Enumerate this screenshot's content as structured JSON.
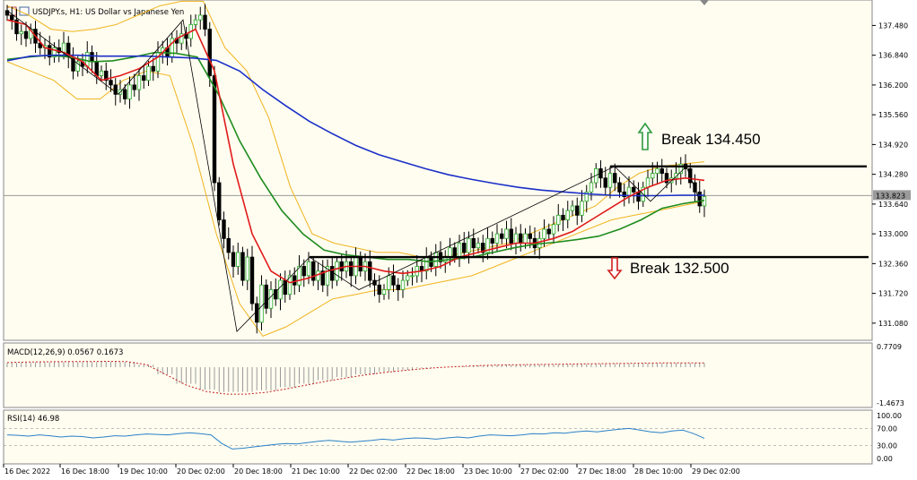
{
  "header": {
    "title": "USDJPY.s, H1:  US Dollar vs Japanese Yen",
    "icons": [
      "pane-icon",
      "chart-icon"
    ]
  },
  "colors": {
    "background": "#fffdf0",
    "candle_up": "#22aa22",
    "candle_down": "#000000",
    "ma_blue": "#1a2fc8",
    "ma_red": "#e11a1a",
    "ma_green": "#1f8c1f",
    "bollinger": "#f0b41e",
    "level_line": "#000000",
    "arrow_up": "#2e9b3e",
    "arrow_down": "#d02020",
    "macd": "#c02020",
    "rsi": "#2a80c8"
  },
  "chart_data": {
    "type": "candlestick",
    "symbol": "USDJPY.s",
    "timeframe": "H1",
    "ylim": [
      130.75,
      137.95
    ],
    "x_tick_labels": [
      "16 Dec 2022",
      "16 Dec 18:00",
      "19 Dec 10:00",
      "20 Dec 02:00",
      "20 Dec 18:00",
      "21 Dec 10:00",
      "22 Dec 02:00",
      "22 Dec 18:00",
      "23 Dec 10:00",
      "27 Dec 02:00",
      "27 Dec 18:00",
      "28 Dec 10:00",
      "29 Dec 02:00"
    ],
    "y_tick_labels": [
      "137.480",
      "136.840",
      "136.200",
      "135.560",
      "134.920",
      "134.280",
      "133.640",
      "133.000",
      "132.360",
      "131.720",
      "131.080"
    ],
    "y_ticks": [
      137.48,
      136.84,
      136.2,
      135.56,
      134.92,
      134.28,
      133.64,
      133.0,
      132.36,
      131.72,
      131.08
    ],
    "current_price": 133.823,
    "current_price_label": "133.823",
    "levels": [
      {
        "value": 134.45,
        "label": "Break 134.450",
        "direction": "up"
      },
      {
        "value": 132.5,
        "label": "Break 132.500",
        "direction": "down"
      }
    ],
    "closes": [
      137.7,
      137.6,
      137.3,
      137.35,
      137.2,
      137.4,
      137.1,
      137.0,
      137.05,
      136.8,
      137.0,
      136.9,
      137.1,
      136.8,
      136.5,
      136.7,
      136.6,
      136.9,
      136.7,
      136.4,
      136.5,
      136.3,
      136.2,
      136.0,
      136.1,
      135.9,
      136.2,
      136.1,
      136.4,
      136.3,
      136.6,
      136.5,
      136.9,
      137.0,
      136.8,
      137.2,
      137.1,
      137.3,
      137.2,
      137.5,
      137.6,
      137.7,
      137.4,
      136.4,
      134.1,
      133.3,
      132.9,
      132.6,
      132.3,
      132.6,
      132.0,
      132.5,
      131.5,
      131.1,
      131.9,
      131.4,
      131.8,
      131.6,
      132.0,
      131.7,
      132.1,
      131.9,
      132.3,
      132.1,
      132.4,
      132.0,
      132.2,
      131.9,
      132.3,
      132.0,
      132.4,
      132.2,
      132.4,
      132.1,
      132.5,
      132.2,
      132.4,
      132.0,
      131.9,
      131.7,
      131.8,
      132.1,
      131.9,
      131.8,
      132.0,
      132.1,
      132.1,
      132.3,
      132.2,
      132.5,
      132.3,
      132.6,
      132.4,
      132.5,
      132.7,
      132.5,
      132.8,
      132.6,
      132.9,
      132.7,
      132.8,
      132.6,
      132.9,
      132.8,
      133.0,
      132.9,
      133.1,
      132.8,
      133.0,
      132.8,
      133.0,
      132.9,
      132.7,
      132.9,
      133.1,
      133.0,
      133.2,
      133.4,
      133.3,
      133.5,
      133.6,
      133.4,
      133.7,
      133.9,
      134.1,
      134.4,
      134.2,
      134.0,
      134.3,
      134.1,
      133.9,
      133.8,
      134.0,
      133.9,
      133.7,
      134.0,
      134.2,
      134.3,
      134.4,
      134.3,
      134.1,
      134.2,
      134.3,
      134.5,
      134.4,
      134.1,
      133.9,
      133.6,
      133.8
    ],
    "sma_blue": [
      136.72,
      136.82,
      136.84,
      136.84,
      136.82,
      136.82,
      136.82,
      136.8,
      136.78,
      136.73,
      136.5,
      136.1,
      135.75,
      135.42,
      135.15,
      134.9,
      134.7,
      134.55,
      134.4,
      134.27,
      134.17,
      134.08,
      134.0,
      133.94,
      133.9,
      133.86,
      133.83,
      133.82,
      133.82,
      133.83,
      133.83
    ],
    "sma_red": [
      137.6,
      137.5,
      137.0,
      136.9,
      136.7,
      136.3,
      136.4,
      136.55,
      136.8,
      137.2,
      137.4,
      136.5,
      134.5,
      133.0,
      132.2,
      131.95,
      132.05,
      132.2,
      132.3,
      132.3,
      132.2,
      132.15,
      132.2,
      132.3,
      132.5,
      132.6,
      132.7,
      132.8,
      132.8,
      132.9,
      133.05,
      133.3,
      133.55,
      133.8,
      134.0,
      134.15,
      134.2,
      134.15
    ],
    "sma_green": [
      136.75,
      136.8,
      136.84,
      136.8,
      136.7,
      136.72,
      136.8,
      136.9,
      136.88,
      136.8,
      136.0,
      135.0,
      134.2,
      133.5,
      133.0,
      132.65,
      132.55,
      132.5,
      132.45,
      132.45,
      132.4,
      132.45,
      132.5,
      132.6,
      132.7,
      132.78,
      132.82,
      132.88,
      132.95,
      133.1,
      133.3,
      133.55,
      133.65,
      133.72
    ],
    "bb_upper": [
      137.9,
      137.7,
      137.4,
      137.35,
      137.4,
      137.5,
      137.7,
      137.9,
      138.0,
      138.0,
      137.0,
      136.5,
      135.5,
      134.0,
      133.0,
      132.8,
      132.7,
      132.6,
      132.6,
      132.5,
      132.5,
      132.6,
      132.7,
      132.8,
      133.0,
      133.2,
      133.4,
      133.6,
      134.0,
      134.3,
      134.45,
      134.5,
      134.55
    ],
    "bb_lower": [
      136.7,
      136.5,
      136.3,
      135.9,
      135.9,
      136.3,
      136.5,
      136.4,
      134.9,
      133.0,
      131.5,
      130.8,
      131.0,
      131.3,
      131.6,
      131.7,
      131.8,
      131.8,
      131.9,
      132.0,
      132.1,
      132.3,
      132.5,
      132.7,
      132.9,
      133.1,
      133.3,
      133.4,
      133.5,
      133.6,
      133.7
    ],
    "macd": {
      "label": "MACD(12,26,9) 0.0567 0.1673",
      "ylim": [
        -1.4673,
        0.7709
      ],
      "top_label": "0.7709",
      "bottom_label": "-1.4673",
      "signal": [
        0.18,
        0.2,
        0.21,
        0.22,
        0.22,
        0.23,
        0.22,
        0.1,
        -0.3,
        -0.7,
        -0.95,
        -1.05,
        -1.05,
        -0.98,
        -0.85,
        -0.7,
        -0.55,
        -0.42,
        -0.3,
        -0.2,
        -0.12,
        -0.05,
        0.0,
        0.04,
        0.07,
        0.09,
        0.1,
        0.11,
        0.12,
        0.13,
        0.14,
        0.15,
        0.16,
        0.17,
        0.17,
        0.17
      ]
    },
    "rsi": {
      "label": "RSI(14) 46.98",
      "ylim": [
        0,
        100
      ],
      "tick_labels": [
        "100.00",
        "70.00",
        "30.00",
        "0.00"
      ],
      "ticks": [
        100,
        70,
        30,
        0
      ],
      "values": [
        55,
        54,
        52,
        55,
        53,
        50,
        52,
        51,
        48,
        50,
        53,
        52,
        55,
        57,
        56,
        55,
        58,
        60,
        58,
        55,
        35,
        22,
        24,
        27,
        30,
        33,
        35,
        34,
        37,
        40,
        42,
        40,
        38,
        40,
        42,
        45,
        43,
        46,
        48,
        47,
        45,
        48,
        50,
        48,
        52,
        55,
        54,
        53,
        55,
        58,
        57,
        60,
        59,
        62,
        64,
        62,
        65,
        68,
        70,
        66,
        62,
        60,
        64,
        66,
        58,
        47
      ]
    }
  }
}
